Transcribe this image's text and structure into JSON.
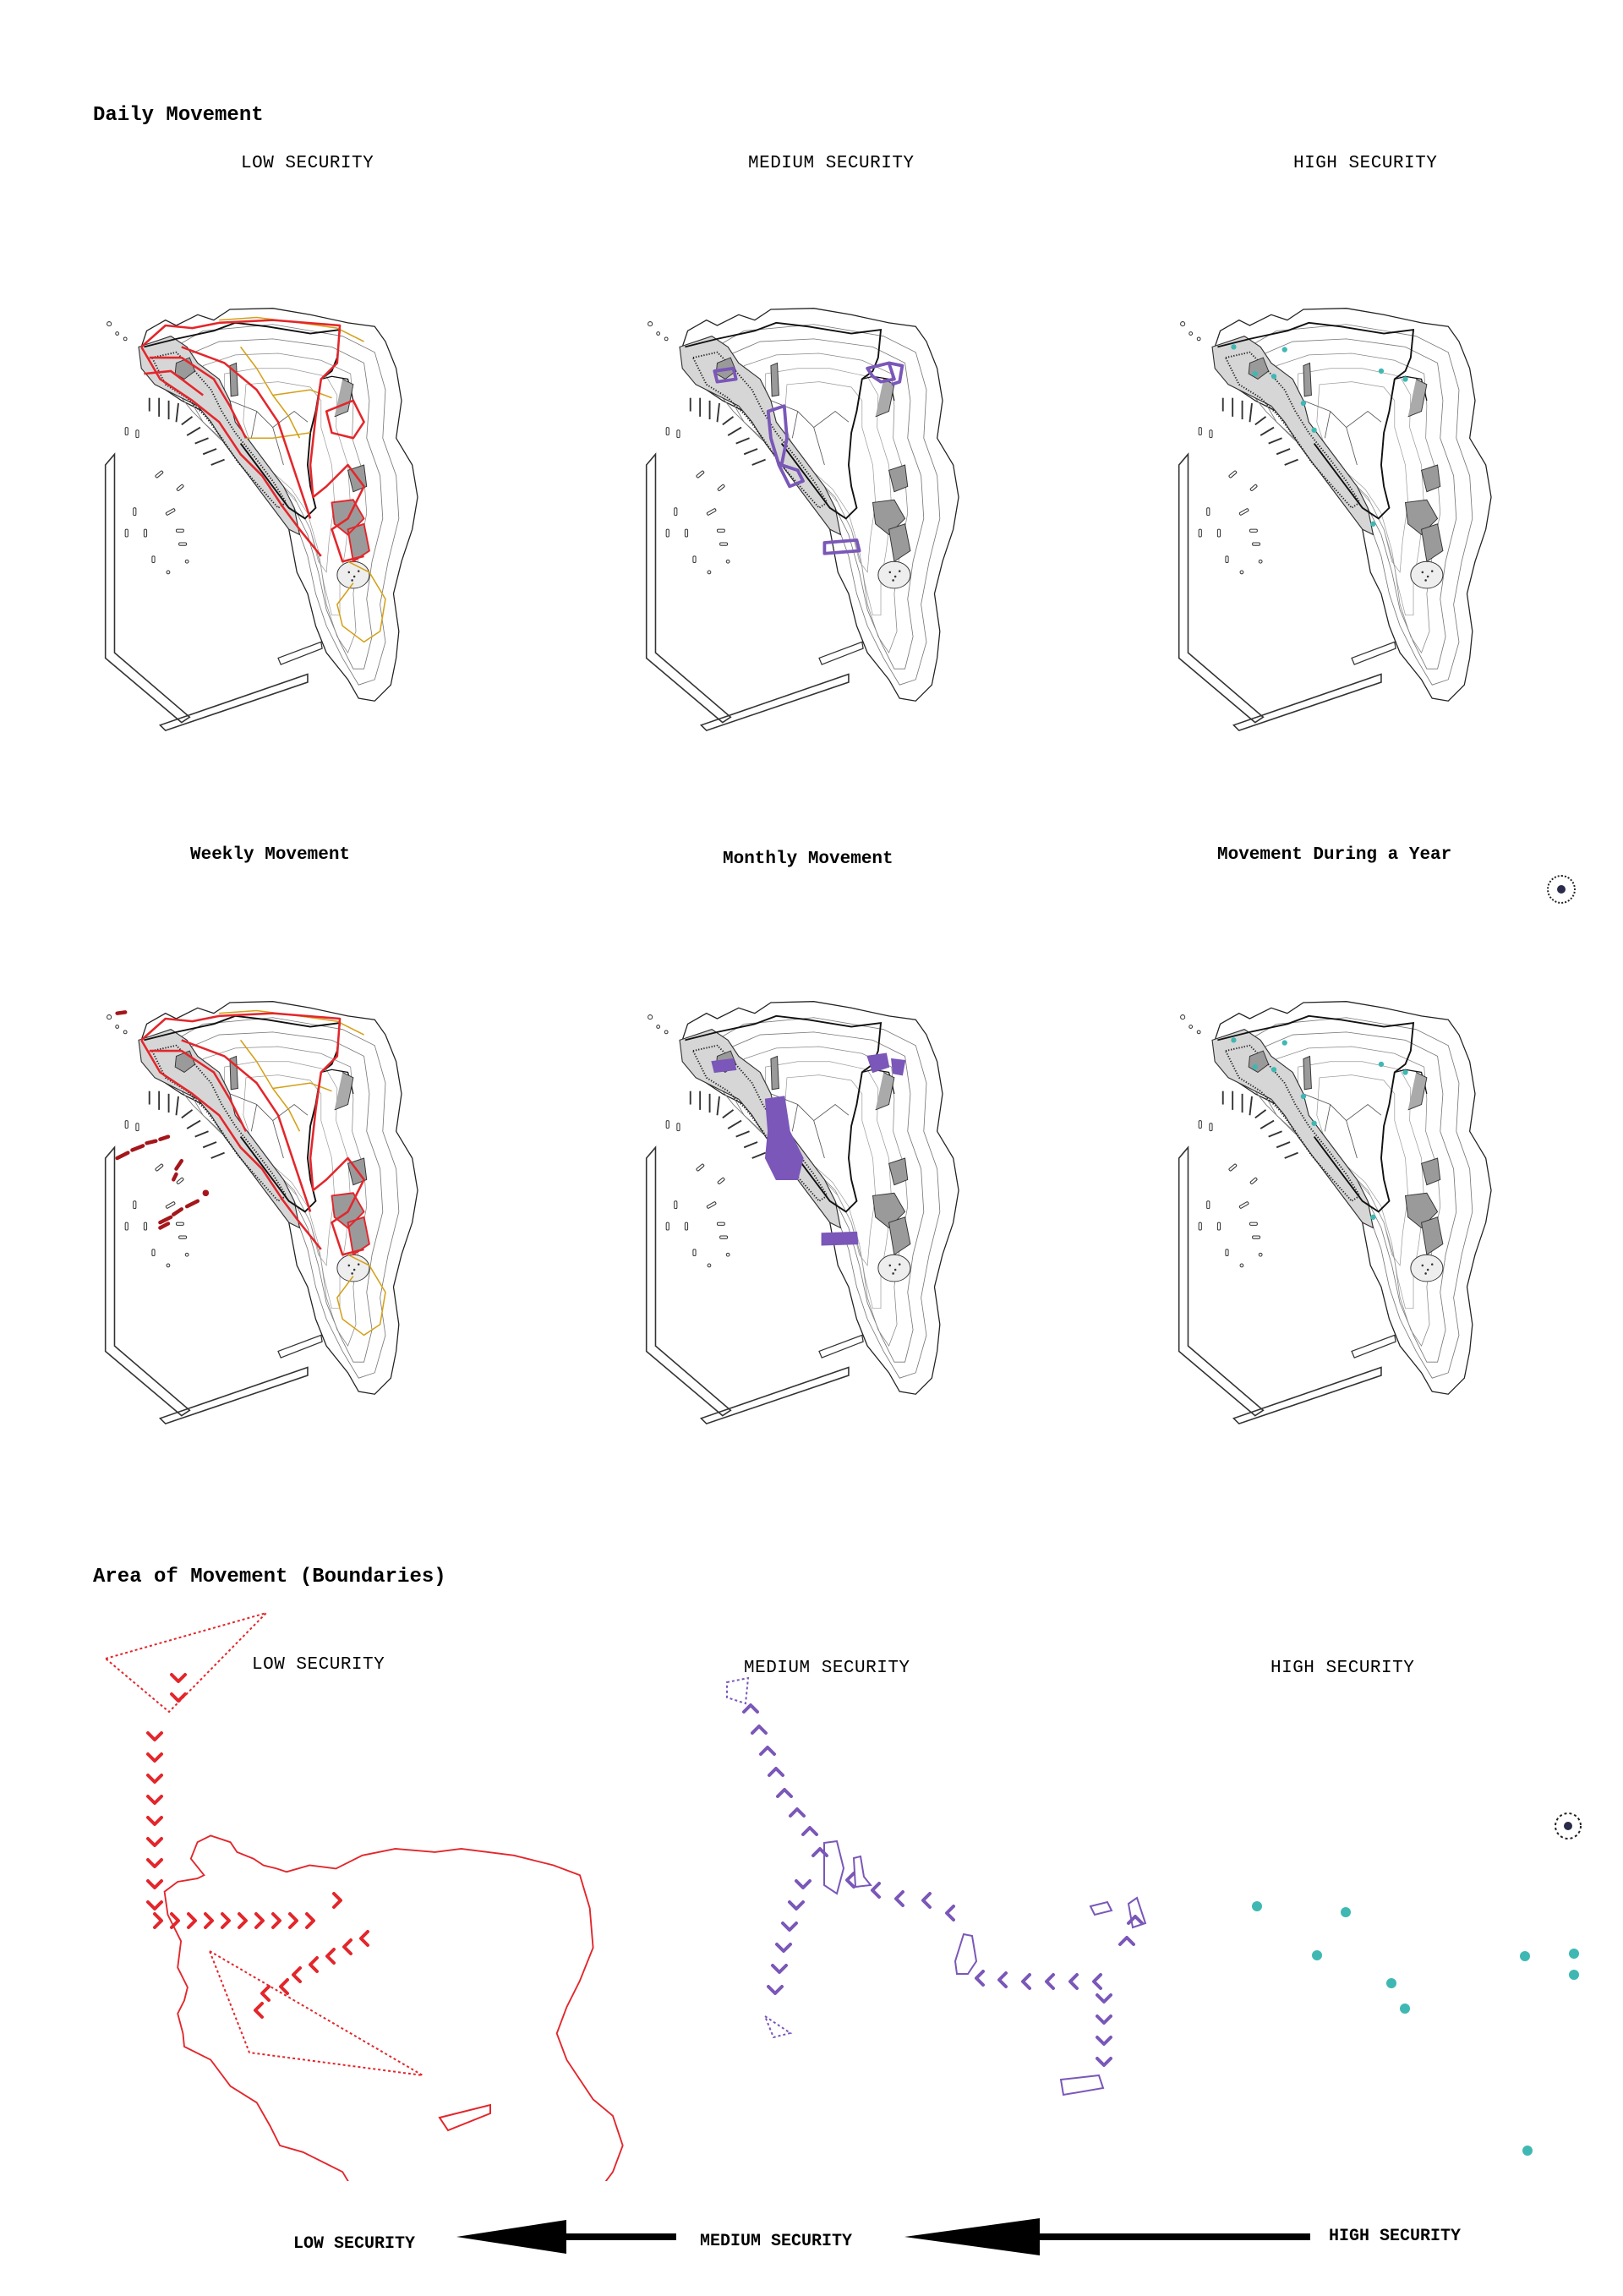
{
  "sections": {
    "daily": "Daily Movement",
    "boundaries": "Area of Movement (Boundaries)"
  },
  "row1": {
    "low": "LOW SECURITY",
    "medium": "MEDIUM SECURITY",
    "high": "HIGH SECURITY"
  },
  "row2": {
    "weekly": "Weekly Movement",
    "monthly": "Monthly Movement",
    "yearly": "Movement During a Year"
  },
  "row3": {
    "low": "LOW SECURITY",
    "medium": "MEDIUM SECURITY",
    "high": "HIGH SECURITY"
  },
  "scale": {
    "low": "LOW SECURITY",
    "medium": "MEDIUM SECURITY",
    "high": "HIGH SECURITY"
  },
  "colors": {
    "low": "#e3262b",
    "low_dark": "#a4161a",
    "orange": "#d4a017",
    "medium": "#7a57b8",
    "high": "#3fb8b3",
    "ink": "#111111"
  }
}
